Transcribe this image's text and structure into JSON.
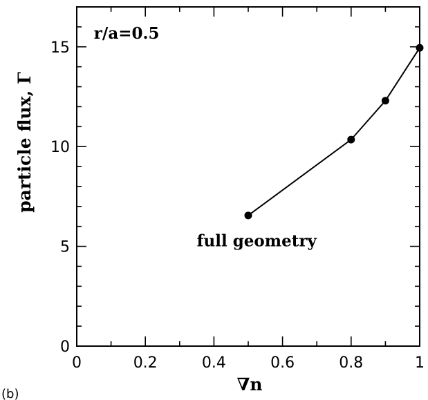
{
  "chart_data": {
    "type": "line",
    "panel_label": "(b)",
    "xlabel": "∇n",
    "ylabel": "particle flux, Γ",
    "xlim": [
      0,
      1
    ],
    "ylim": [
      0,
      17
    ],
    "x_ticks": [
      0,
      0.2,
      0.4,
      0.6,
      0.8,
      1
    ],
    "x_tick_labels": [
      "0",
      "0.2",
      "0.4",
      "0.6",
      "0.8",
      "1"
    ],
    "y_ticks": [
      0,
      5,
      10,
      15
    ],
    "y_tick_labels": [
      "0",
      "5",
      "10",
      "15"
    ],
    "x_minor_step": 0.1,
    "y_minor_step": 1,
    "grid": false,
    "annotations": [
      {
        "text": "r/a=0.5",
        "x": 0.05,
        "y": 15.4
      },
      {
        "text": "full geometry",
        "x": 0.35,
        "y": 5.0
      }
    ],
    "series": [
      {
        "color": "#000000",
        "marker": "circle",
        "x": [
          0.5,
          0.8,
          0.9,
          1.0
        ],
        "y": [
          6.55,
          10.35,
          12.3,
          14.95
        ]
      }
    ]
  }
}
